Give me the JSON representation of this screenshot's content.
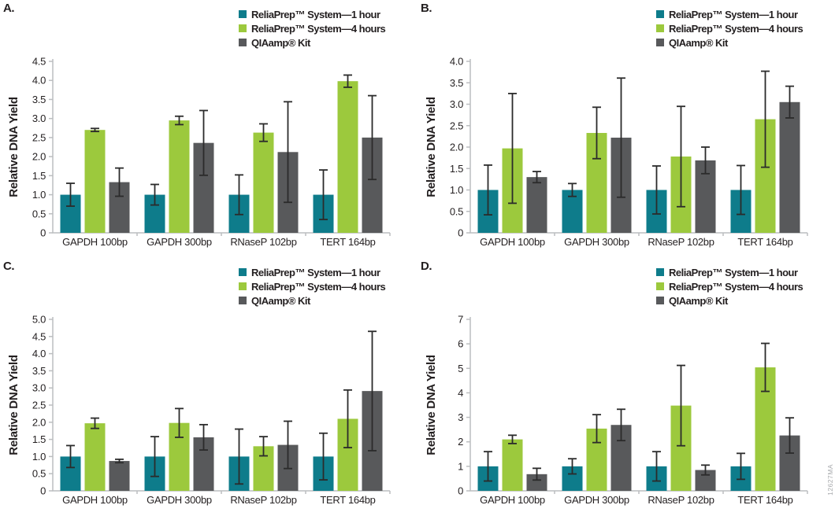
{
  "figure": {
    "watermark": "12627MA",
    "ylabel": "Relative DNA Yield"
  },
  "colors": {
    "teal": "#0e7c8b",
    "green": "#9cc93d",
    "gray": "#58595b",
    "axis": "#bcbec0",
    "errorbar": "#2b2b2b",
    "text": "#231f20",
    "watermark": "#a7a9ac"
  },
  "legend": {
    "position": "top-right",
    "items": [
      {
        "label": "ReliaPrep™ System—1 hour",
        "color": "teal"
      },
      {
        "label": "ReliaPrep™ System—4 hours",
        "color": "green"
      },
      {
        "label": "QIAamp® Kit",
        "color": "gray"
      }
    ]
  },
  "chart_data": [
    {
      "type": "bar",
      "panel_label": "A.",
      "ylabel": "Relative DNA Yield",
      "ylim": [
        0,
        4.5
      ],
      "ytick_step": 0.5,
      "ytick_decimals": 1,
      "grid": false,
      "legend_position": "top-right",
      "categories": [
        "GAPDH 100bp",
        "GAPDH 300bp",
        "RNaseP 102bp",
        "TERT 164bp"
      ],
      "series": [
        {
          "name": "ReliaPrep™ System—1 hour",
          "color": "teal",
          "values": [
            1.0,
            1.0,
            1.0,
            1.0
          ],
          "errors": [
            0.3,
            0.27,
            0.52,
            0.65
          ]
        },
        {
          "name": "ReliaPrep™ System—4 hours",
          "color": "green",
          "values": [
            2.7,
            2.95,
            2.63,
            3.98
          ],
          "errors": [
            0.04,
            0.11,
            0.23,
            0.16
          ]
        },
        {
          "name": "QIAamp® Kit",
          "color": "gray",
          "values": [
            1.33,
            2.36,
            2.12,
            2.5
          ],
          "errors": [
            0.37,
            0.85,
            1.32,
            1.1
          ]
        }
      ]
    },
    {
      "type": "bar",
      "panel_label": "B.",
      "ylabel": "Relative DNA Yield",
      "ylim": [
        0,
        4.0
      ],
      "ytick_step": 0.5,
      "ytick_decimals": 1,
      "grid": false,
      "legend_position": "top-right",
      "categories": [
        "GAPDH 100bp",
        "GAPDH 300bp",
        "RNaseP 102bp",
        "TERT 164bp"
      ],
      "series": [
        {
          "name": "ReliaPrep™ System—1 hour",
          "color": "teal",
          "values": [
            1.0,
            1.0,
            1.0,
            1.0
          ],
          "errors": [
            0.58,
            0.15,
            0.56,
            0.57
          ]
        },
        {
          "name": "ReliaPrep™ System—4 hours",
          "color": "green",
          "values": [
            1.97,
            2.33,
            1.78,
            2.65
          ],
          "errors": [
            1.28,
            0.6,
            1.17,
            1.12
          ]
        },
        {
          "name": "QIAamp® Kit",
          "color": "gray",
          "values": [
            1.3,
            2.22,
            1.69,
            3.05
          ],
          "errors": [
            0.13,
            1.39,
            0.31,
            0.37
          ]
        }
      ]
    },
    {
      "type": "bar",
      "panel_label": "C.",
      "ylabel": "Relative DNA Yield",
      "ylim": [
        0,
        5.0
      ],
      "ytick_step": 0.5,
      "ytick_decimals": 1,
      "grid": false,
      "legend_position": "top-right",
      "categories": [
        "GAPDH 100bp",
        "GAPDH 300bp",
        "RNaseP 102bp",
        "TERT 164bp"
      ],
      "series": [
        {
          "name": "ReliaPrep™ System—1 hour",
          "color": "teal",
          "values": [
            1.0,
            1.0,
            1.0,
            1.0
          ],
          "errors": [
            0.32,
            0.58,
            0.8,
            0.68
          ]
        },
        {
          "name": "ReliaPrep™ System—4 hours",
          "color": "green",
          "values": [
            1.97,
            1.98,
            1.3,
            2.1
          ],
          "errors": [
            0.15,
            0.42,
            0.28,
            0.84
          ]
        },
        {
          "name": "QIAamp® Kit",
          "color": "gray",
          "values": [
            0.87,
            1.56,
            1.34,
            2.91
          ],
          "errors": [
            0.05,
            0.37,
            0.69,
            1.74
          ]
        }
      ]
    },
    {
      "type": "bar",
      "panel_label": "D.",
      "ylabel": "Relative DNA Yield",
      "ylim": [
        0,
        7
      ],
      "ytick_step": 1,
      "ytick_decimals": 0,
      "grid": false,
      "legend_position": "top-right",
      "categories": [
        "GAPDH 100bp",
        "GAPDH 300bp",
        "RNaseP 102bp",
        "TERT 164bp"
      ],
      "series": [
        {
          "name": "ReliaPrep™ System—1 hour",
          "color": "teal",
          "values": [
            1.0,
            1.0,
            1.0,
            1.0
          ],
          "errors": [
            0.6,
            0.31,
            0.6,
            0.53
          ]
        },
        {
          "name": "ReliaPrep™ System—4 hours",
          "color": "green",
          "values": [
            2.1,
            2.54,
            3.48,
            5.04
          ],
          "errors": [
            0.17,
            0.57,
            1.64,
            0.98
          ]
        },
        {
          "name": "QIAamp® Kit",
          "color": "gray",
          "values": [
            0.68,
            2.69,
            0.85,
            2.26
          ],
          "errors": [
            0.24,
            0.64,
            0.2,
            0.72
          ]
        }
      ]
    }
  ]
}
